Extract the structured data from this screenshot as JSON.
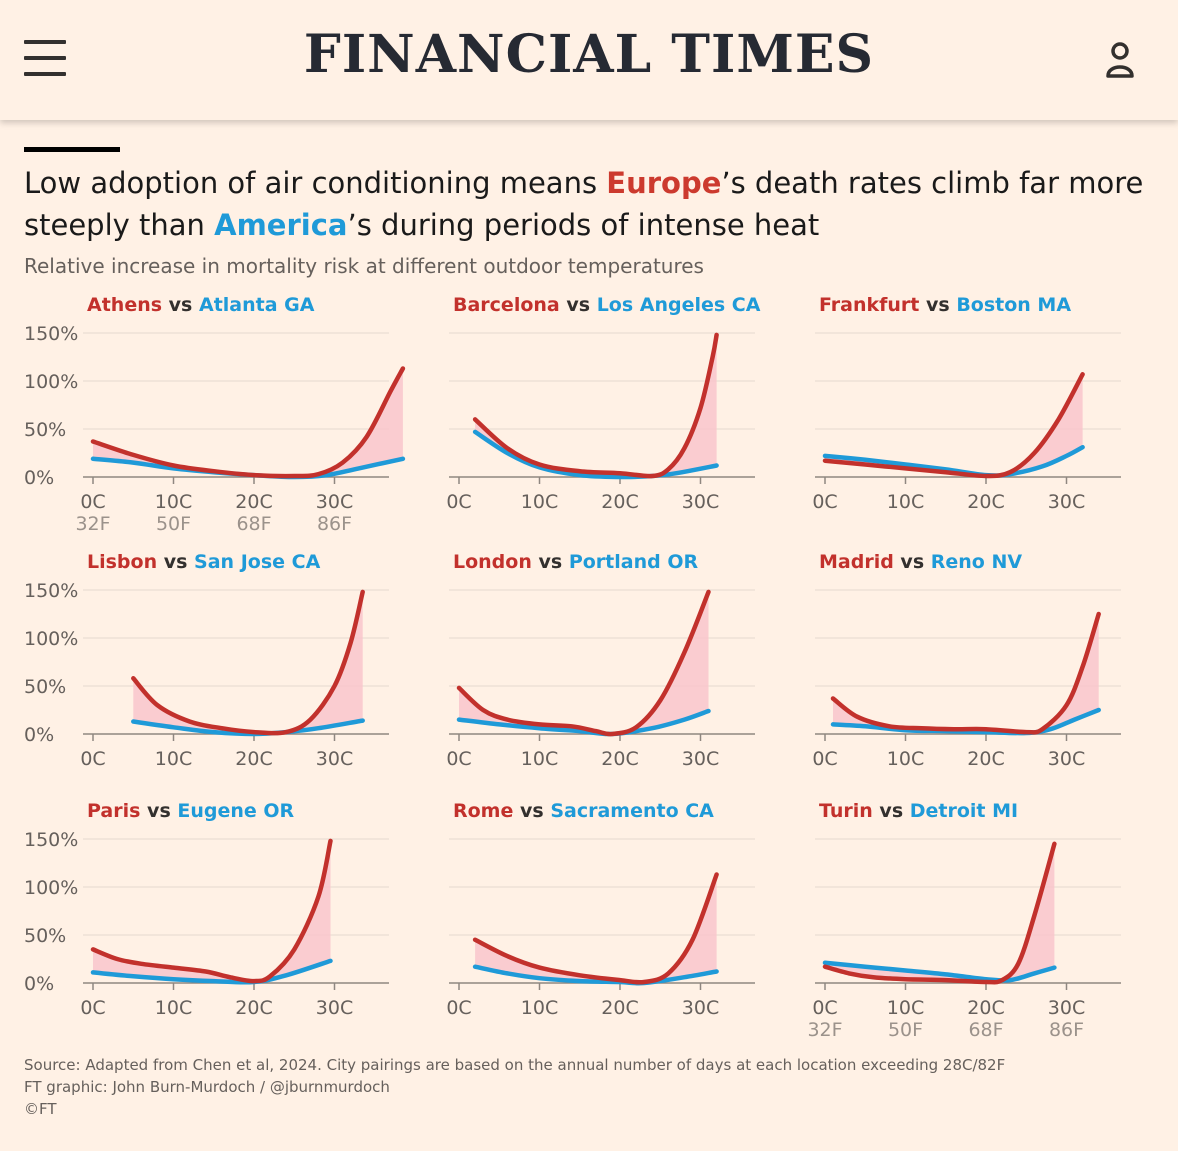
{
  "header": {
    "brand": "FINANCIAL TIMES",
    "menu_icon": "hamburger-menu-icon",
    "user_icon": "user-account-icon"
  },
  "headline": {
    "part1": "Low adoption of air conditioning means ",
    "europe": "Europe",
    "part2": "’s death rates climb far more steeply than ",
    "america": "America",
    "part3": "’s during periods of intense heat"
  },
  "subtitle": "Relative increase in mortality risk at different outdoor temperatures",
  "colors": {
    "europe": "#c2312c",
    "america": "#1f9ad8",
    "fill": "#f9c6cc",
    "background": "#fff1e5"
  },
  "chart_data": {
    "type": "line",
    "ylim": [
      0,
      150
    ],
    "xlim": [
      0,
      38
    ],
    "yticks": [
      "150%",
      "100%",
      "50%",
      "0%"
    ],
    "ytick_values": [
      150,
      100,
      50,
      0
    ],
    "xticks_c": [
      "0C",
      "10C",
      "20C",
      "30C"
    ],
    "xtick_values": [
      0,
      10,
      20,
      30
    ],
    "xticks_f": [
      "32F",
      "50F",
      "68F",
      "86F"
    ],
    "panels": [
      {
        "europe": "Athens",
        "vs": "vs",
        "america": "Atlanta GA",
        "show_f": true,
        "eu": [
          [
            0,
            37
          ],
          [
            5,
            23
          ],
          [
            10,
            12
          ],
          [
            15,
            6
          ],
          [
            20,
            2
          ],
          [
            25,
            1
          ],
          [
            28,
            3
          ],
          [
            31,
            15
          ],
          [
            34,
            42
          ],
          [
            37,
            90
          ],
          [
            38.5,
            113
          ]
        ],
        "us": [
          [
            0,
            19
          ],
          [
            5,
            15
          ],
          [
            10,
            9
          ],
          [
            15,
            5
          ],
          [
            20,
            2
          ],
          [
            25,
            0
          ],
          [
            29,
            2
          ],
          [
            33,
            9
          ],
          [
            38.5,
            19
          ]
        ]
      },
      {
        "europe": "Barcelona",
        "vs": "vs",
        "america": "Los Angeles CA",
        "show_f": false,
        "eu": [
          [
            2,
            60
          ],
          [
            6,
            30
          ],
          [
            10,
            13
          ],
          [
            15,
            6
          ],
          [
            20,
            4
          ],
          [
            24,
            1
          ],
          [
            26,
            8
          ],
          [
            28,
            30
          ],
          [
            30,
            72
          ],
          [
            31.5,
            125
          ],
          [
            32,
            148
          ]
        ],
        "us": [
          [
            2,
            47
          ],
          [
            6,
            25
          ],
          [
            10,
            10
          ],
          [
            15,
            2
          ],
          [
            20,
            0
          ],
          [
            24,
            1
          ],
          [
            27,
            4
          ],
          [
            32,
            12
          ]
        ]
      },
      {
        "europe": "Frankfurt",
        "vs": "vs",
        "america": "Boston MA",
        "show_f": false,
        "eu": [
          [
            0,
            17
          ],
          [
            5,
            13
          ],
          [
            10,
            9
          ],
          [
            15,
            5
          ],
          [
            20,
            1
          ],
          [
            23,
            5
          ],
          [
            26,
            25
          ],
          [
            29,
            60
          ],
          [
            32,
            107
          ]
        ],
        "us": [
          [
            0,
            22
          ],
          [
            5,
            18
          ],
          [
            10,
            13
          ],
          [
            15,
            8
          ],
          [
            20,
            2
          ],
          [
            23,
            3
          ],
          [
            27,
            11
          ],
          [
            30,
            22
          ],
          [
            32,
            31
          ]
        ]
      },
      {
        "europe": "Lisbon",
        "vs": "vs",
        "america": "San Jose CA",
        "show_f": false,
        "eu": [
          [
            5,
            58
          ],
          [
            8,
            30
          ],
          [
            12,
            13
          ],
          [
            16,
            6
          ],
          [
            20,
            2
          ],
          [
            24,
            2
          ],
          [
            27,
            15
          ],
          [
            30,
            50
          ],
          [
            32,
            95
          ],
          [
            33.5,
            148
          ]
        ],
        "us": [
          [
            5,
            13
          ],
          [
            10,
            7
          ],
          [
            15,
            2
          ],
          [
            20,
            0
          ],
          [
            24,
            2
          ],
          [
            28,
            6
          ],
          [
            33.5,
            14
          ]
        ]
      },
      {
        "europe": "London",
        "vs": "vs",
        "america": "Portland OR",
        "show_f": false,
        "eu": [
          [
            0,
            48
          ],
          [
            3,
            25
          ],
          [
            6,
            15
          ],
          [
            10,
            10
          ],
          [
            14,
            8
          ],
          [
            17,
            3
          ],
          [
            19,
            0
          ],
          [
            22,
            7
          ],
          [
            25,
            35
          ],
          [
            28,
            85
          ],
          [
            31,
            148
          ]
        ],
        "us": [
          [
            0,
            15
          ],
          [
            5,
            10
          ],
          [
            10,
            6
          ],
          [
            15,
            3
          ],
          [
            19,
            0
          ],
          [
            24,
            6
          ],
          [
            28,
            15
          ],
          [
            31,
            24
          ]
        ]
      },
      {
        "europe": "Madrid",
        "vs": "vs",
        "america": "Reno NV",
        "show_f": false,
        "eu": [
          [
            1,
            37
          ],
          [
            4,
            18
          ],
          [
            8,
            8
          ],
          [
            12,
            6
          ],
          [
            16,
            5
          ],
          [
            20,
            5
          ],
          [
            25,
            2
          ],
          [
            27,
            5
          ],
          [
            30,
            30
          ],
          [
            32,
            70
          ],
          [
            34,
            125
          ]
        ],
        "us": [
          [
            1,
            10
          ],
          [
            5,
            8
          ],
          [
            10,
            4
          ],
          [
            15,
            3
          ],
          [
            20,
            2
          ],
          [
            25,
            1
          ],
          [
            28,
            5
          ],
          [
            31,
            15
          ],
          [
            34,
            25
          ]
        ]
      },
      {
        "europe": "Paris",
        "vs": "vs",
        "america": "Eugene OR",
        "show_f": false,
        "eu": [
          [
            0,
            35
          ],
          [
            3,
            25
          ],
          [
            6,
            20
          ],
          [
            10,
            16
          ],
          [
            14,
            12
          ],
          [
            17,
            6
          ],
          [
            20,
            2
          ],
          [
            22,
            7
          ],
          [
            25,
            35
          ],
          [
            28,
            90
          ],
          [
            29.5,
            148
          ]
        ],
        "us": [
          [
            0,
            11
          ],
          [
            5,
            7
          ],
          [
            10,
            4
          ],
          [
            15,
            2
          ],
          [
            20,
            1
          ],
          [
            24,
            8
          ],
          [
            29.5,
            23
          ]
        ]
      },
      {
        "europe": "Rome",
        "vs": "vs",
        "america": "Sacramento CA",
        "show_f": false,
        "eu": [
          [
            2,
            45
          ],
          [
            6,
            28
          ],
          [
            10,
            16
          ],
          [
            15,
            8
          ],
          [
            20,
            3
          ],
          [
            23,
            1
          ],
          [
            26,
            10
          ],
          [
            29,
            45
          ],
          [
            32,
            113
          ]
        ],
        "us": [
          [
            2,
            17
          ],
          [
            6,
            10
          ],
          [
            10,
            5
          ],
          [
            15,
            2
          ],
          [
            20,
            1
          ],
          [
            23,
            0
          ],
          [
            28,
            6
          ],
          [
            32,
            12
          ]
        ]
      },
      {
        "europe": "Turin",
        "vs": "vs",
        "america": "Detroit MI",
        "show_f": true,
        "eu": [
          [
            0,
            17
          ],
          [
            3,
            10
          ],
          [
            6,
            6
          ],
          [
            10,
            4
          ],
          [
            15,
            3
          ],
          [
            20,
            1
          ],
          [
            22,
            3
          ],
          [
            24,
            20
          ],
          [
            26,
            70
          ],
          [
            28.5,
            145
          ]
        ],
        "us": [
          [
            0,
            21
          ],
          [
            5,
            17
          ],
          [
            10,
            13
          ],
          [
            15,
            9
          ],
          [
            20,
            4
          ],
          [
            23,
            3
          ],
          [
            26,
            10
          ],
          [
            28.5,
            16
          ]
        ]
      }
    ]
  },
  "footer": {
    "source": "Source: Adapted from Chen et al, 2024. City pairings are based on the annual number of days at each location exceeding 28C/82F",
    "graphic": "FT graphic: John Burn-Murdoch / @jburnmurdoch",
    "copyright": "©FT"
  }
}
